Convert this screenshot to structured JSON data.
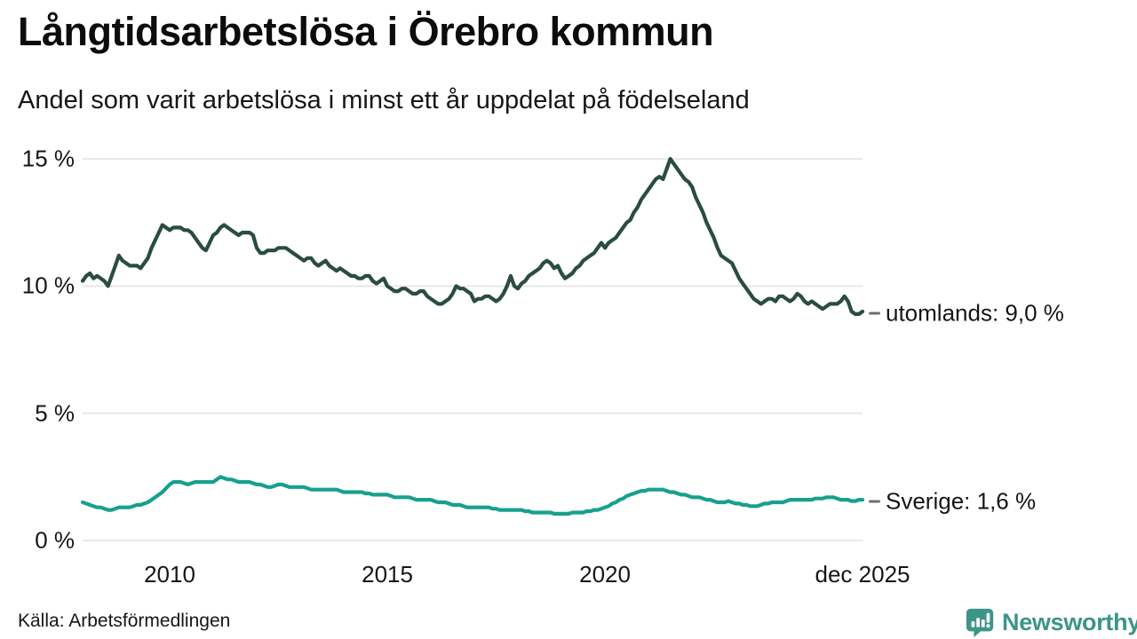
{
  "chart_data": {
    "type": "line",
    "title": "Långtidsarbetslösa i Örebro kommun",
    "subtitle": "Andel som varit arbetslösa i minst ett år uppdelat på födelseland",
    "source": "Källa: Arbetsförmedlingen",
    "x_unit": "month",
    "x_start": "2008-01",
    "x_end": "2025-12",
    "ylim": [
      0,
      15.5
    ],
    "grid": "horizontal-only",
    "legend_position": "right-end-labels",
    "y_ticks": [
      {
        "value": 0,
        "label": "0 %"
      },
      {
        "value": 5,
        "label": "5 %"
      },
      {
        "value": 10,
        "label": "10 %"
      },
      {
        "value": 15,
        "label": "15 %"
      }
    ],
    "x_ticks": [
      {
        "index": 24,
        "label": "2010"
      },
      {
        "index": 84,
        "label": "2015"
      },
      {
        "index": 144,
        "label": "2020"
      },
      {
        "index": 215,
        "label": "dec 2025"
      }
    ],
    "series": [
      {
        "name": "utomlands",
        "label": "utomlands: 9,0 %",
        "end_value": 9.0,
        "color": "#2a4c42",
        "values": [
          10.2,
          10.4,
          10.5,
          10.3,
          10.4,
          10.3,
          10.2,
          10.0,
          10.4,
          10.8,
          11.2,
          11.0,
          10.9,
          10.8,
          10.8,
          10.8,
          10.7,
          10.9,
          11.1,
          11.5,
          11.8,
          12.1,
          12.4,
          12.3,
          12.2,
          12.3,
          12.3,
          12.3,
          12.2,
          12.2,
          12.1,
          11.9,
          11.7,
          11.5,
          11.4,
          11.7,
          12.0,
          12.1,
          12.3,
          12.4,
          12.3,
          12.2,
          12.1,
          12.0,
          12.1,
          12.1,
          12.1,
          12.0,
          11.5,
          11.3,
          11.3,
          11.4,
          11.4,
          11.4,
          11.5,
          11.5,
          11.5,
          11.4,
          11.3,
          11.2,
          11.1,
          11.0,
          11.1,
          11.1,
          10.9,
          10.8,
          10.9,
          11.0,
          10.8,
          10.7,
          10.6,
          10.7,
          10.6,
          10.5,
          10.4,
          10.4,
          10.3,
          10.3,
          10.4,
          10.4,
          10.2,
          10.1,
          10.2,
          10.3,
          10.0,
          9.9,
          9.8,
          9.8,
          9.9,
          9.9,
          9.8,
          9.7,
          9.7,
          9.8,
          9.8,
          9.6,
          9.5,
          9.4,
          9.3,
          9.3,
          9.4,
          9.5,
          9.7,
          10.0,
          9.9,
          9.9,
          9.8,
          9.7,
          9.4,
          9.5,
          9.5,
          9.6,
          9.6,
          9.5,
          9.4,
          9.5,
          9.7,
          10.0,
          10.4,
          10.0,
          9.9,
          10.1,
          10.2,
          10.4,
          10.5,
          10.6,
          10.7,
          10.9,
          11.0,
          10.9,
          10.7,
          10.8,
          10.5,
          10.3,
          10.4,
          10.5,
          10.7,
          10.8,
          11.0,
          11.1,
          11.2,
          11.3,
          11.5,
          11.7,
          11.5,
          11.7,
          11.8,
          11.9,
          12.1,
          12.3,
          12.5,
          12.6,
          12.9,
          13.1,
          13.4,
          13.6,
          13.8,
          14.0,
          14.2,
          14.3,
          14.2,
          14.6,
          15.0,
          14.8,
          14.6,
          14.4,
          14.2,
          14.1,
          13.9,
          13.5,
          13.2,
          12.9,
          12.5,
          12.2,
          11.9,
          11.5,
          11.2,
          11.1,
          11.0,
          10.9,
          10.6,
          10.3,
          10.1,
          9.9,
          9.7,
          9.5,
          9.4,
          9.3,
          9.4,
          9.5,
          9.5,
          9.4,
          9.6,
          9.6,
          9.5,
          9.4,
          9.5,
          9.7,
          9.6,
          9.4,
          9.3,
          9.4,
          9.3,
          9.2,
          9.1,
          9.2,
          9.3,
          9.3,
          9.3,
          9.4,
          9.6,
          9.4,
          9.0,
          8.9,
          8.9,
          9.0
        ]
      },
      {
        "name": "Sverige",
        "label": "Sverige: 1,6 %",
        "end_value": 1.6,
        "color": "#18a08f",
        "values": [
          1.5,
          1.45,
          1.4,
          1.35,
          1.3,
          1.3,
          1.25,
          1.2,
          1.2,
          1.25,
          1.3,
          1.3,
          1.3,
          1.3,
          1.35,
          1.4,
          1.4,
          1.45,
          1.5,
          1.6,
          1.7,
          1.8,
          1.9,
          2.05,
          2.2,
          2.3,
          2.3,
          2.3,
          2.25,
          2.2,
          2.25,
          2.3,
          2.3,
          2.3,
          2.3,
          2.3,
          2.3,
          2.4,
          2.5,
          2.45,
          2.4,
          2.4,
          2.35,
          2.3,
          2.3,
          2.3,
          2.3,
          2.25,
          2.2,
          2.2,
          2.15,
          2.1,
          2.1,
          2.15,
          2.2,
          2.2,
          2.15,
          2.1,
          2.1,
          2.1,
          2.1,
          2.1,
          2.05,
          2.0,
          2.0,
          2.0,
          2.0,
          2.0,
          2.0,
          2.0,
          2.0,
          1.95,
          1.9,
          1.9,
          1.9,
          1.9,
          1.9,
          1.9,
          1.85,
          1.85,
          1.8,
          1.8,
          1.8,
          1.8,
          1.8,
          1.75,
          1.7,
          1.7,
          1.7,
          1.7,
          1.7,
          1.65,
          1.6,
          1.6,
          1.6,
          1.6,
          1.6,
          1.55,
          1.5,
          1.5,
          1.5,
          1.45,
          1.4,
          1.4,
          1.4,
          1.35,
          1.3,
          1.3,
          1.3,
          1.3,
          1.3,
          1.3,
          1.3,
          1.25,
          1.25,
          1.2,
          1.2,
          1.2,
          1.2,
          1.2,
          1.2,
          1.2,
          1.15,
          1.15,
          1.1,
          1.1,
          1.1,
          1.1,
          1.1,
          1.1,
          1.05,
          1.05,
          1.05,
          1.05,
          1.05,
          1.1,
          1.1,
          1.1,
          1.1,
          1.15,
          1.15,
          1.2,
          1.2,
          1.25,
          1.3,
          1.35,
          1.45,
          1.5,
          1.6,
          1.65,
          1.75,
          1.8,
          1.85,
          1.9,
          1.95,
          1.95,
          2.0,
          2.0,
          2.0,
          2.0,
          2.0,
          1.95,
          1.9,
          1.9,
          1.85,
          1.8,
          1.8,
          1.75,
          1.7,
          1.7,
          1.7,
          1.65,
          1.6,
          1.6,
          1.55,
          1.5,
          1.5,
          1.5,
          1.55,
          1.5,
          1.45,
          1.45,
          1.4,
          1.4,
          1.35,
          1.35,
          1.35,
          1.4,
          1.45,
          1.45,
          1.5,
          1.5,
          1.5,
          1.5,
          1.55,
          1.6,
          1.6,
          1.6,
          1.6,
          1.6,
          1.6,
          1.6,
          1.65,
          1.65,
          1.65,
          1.7,
          1.7,
          1.7,
          1.65,
          1.6,
          1.6,
          1.6,
          1.55,
          1.55,
          1.6,
          1.6
        ]
      }
    ]
  },
  "branding": {
    "brand": "Newsworthy",
    "brand_color": "#3d9489"
  },
  "colors": {
    "grid": "#e8e8e8",
    "text": "#161616",
    "background": "#ffffff"
  }
}
